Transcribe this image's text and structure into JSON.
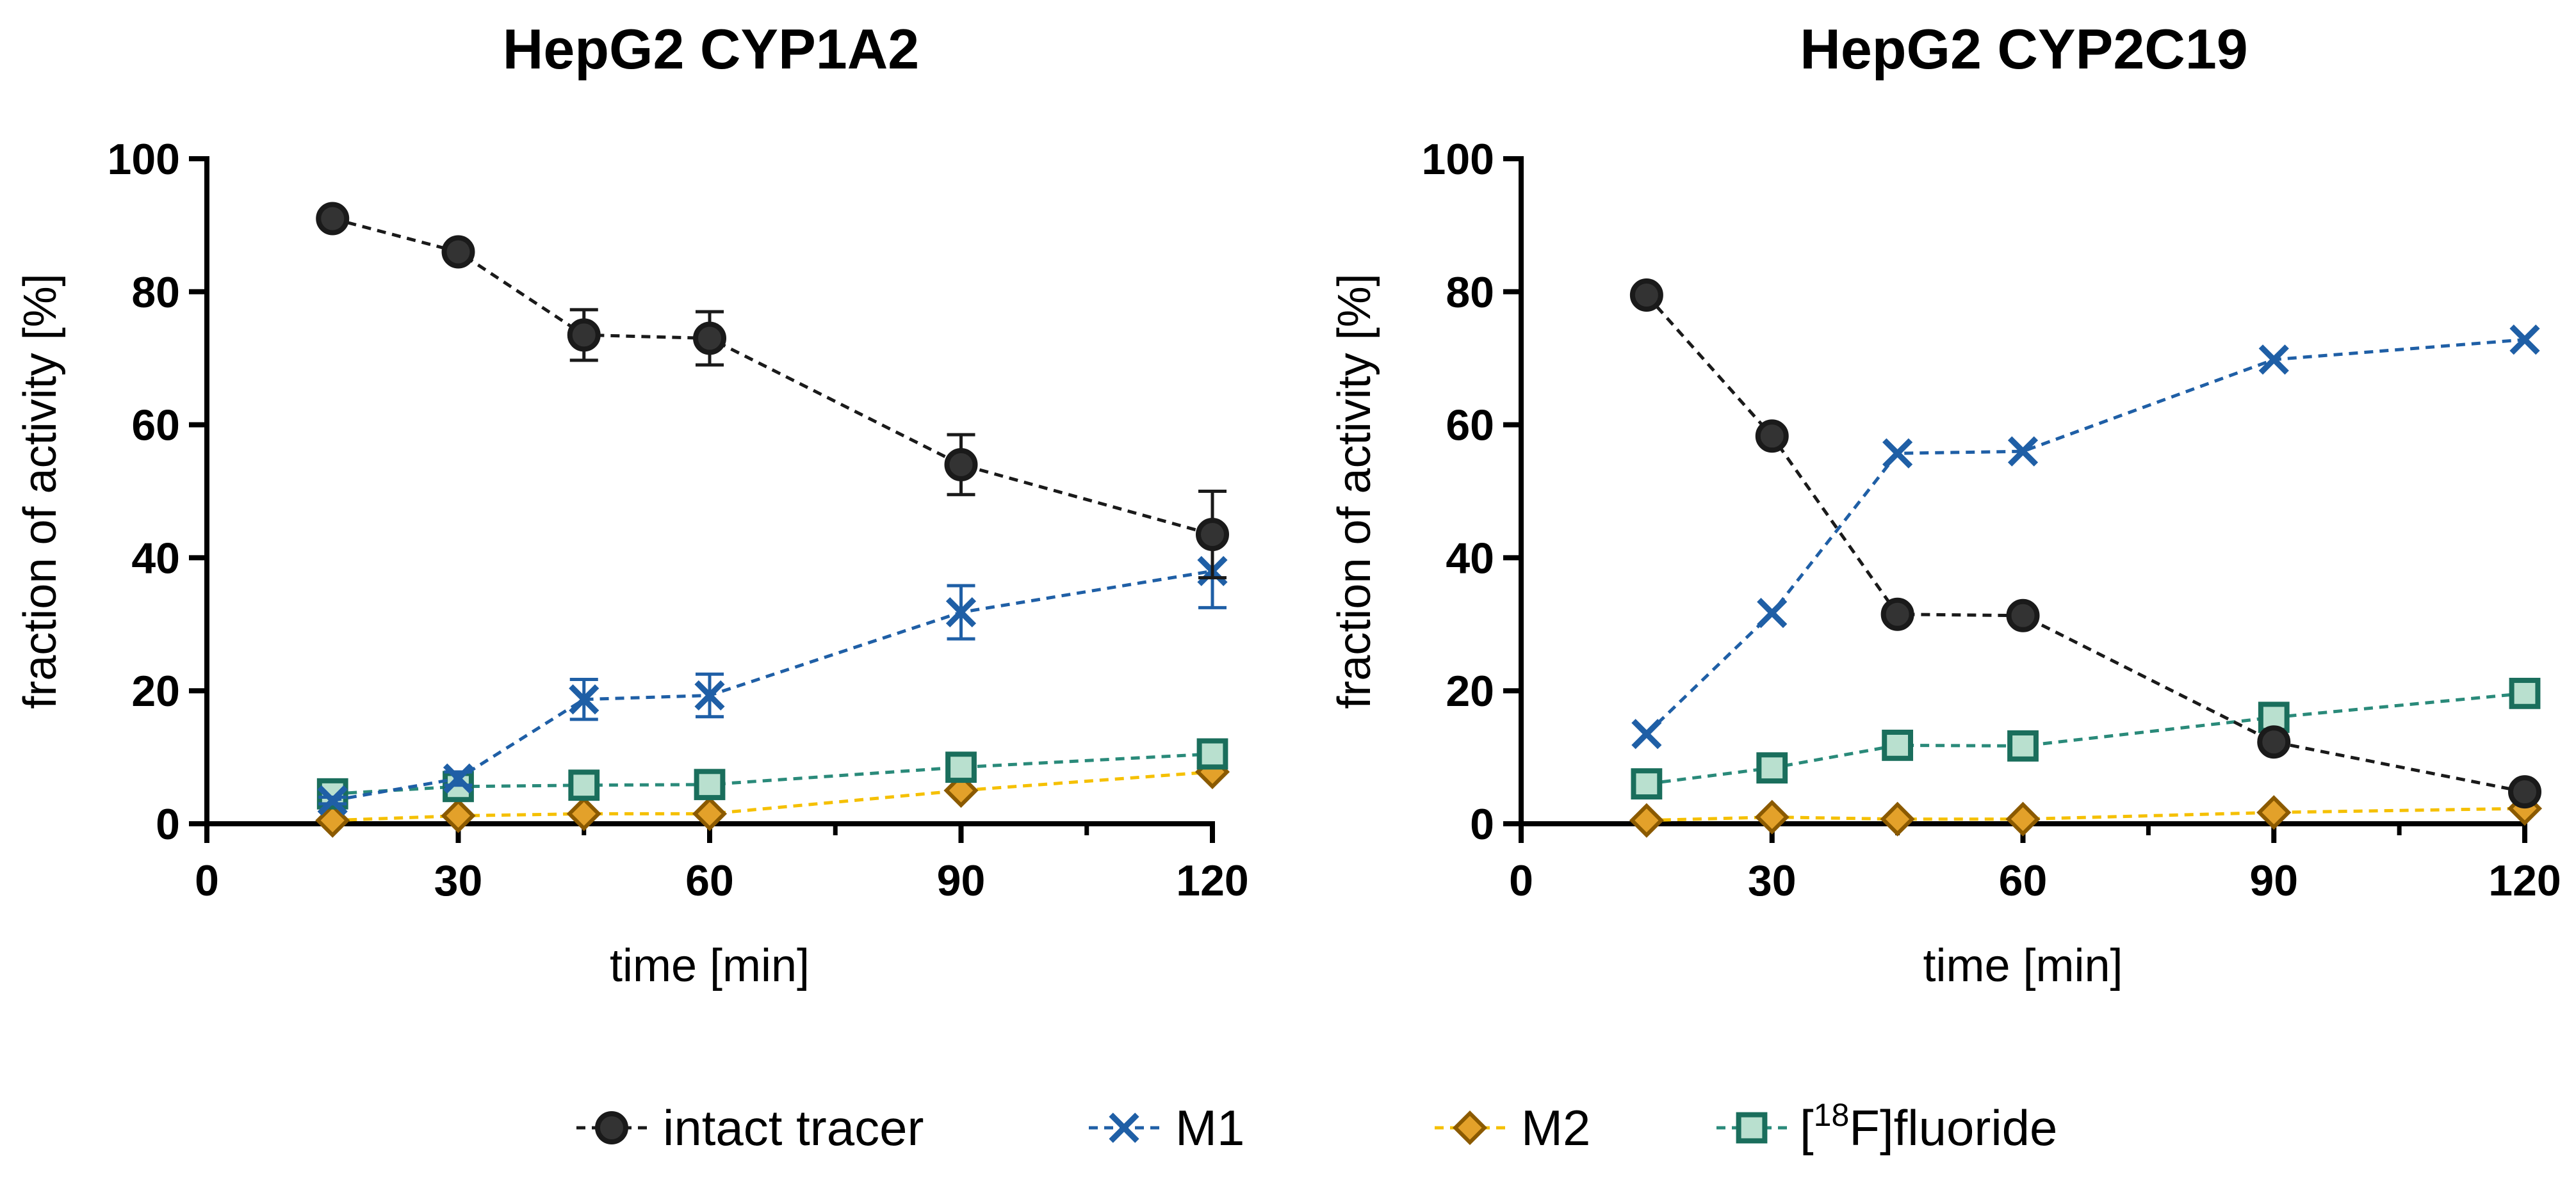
{
  "legend": {
    "placement": "bottom-center",
    "entries": [
      {
        "key": "intact",
        "label": "intact tracer",
        "color": "#1a1a1a",
        "fill": "#333333",
        "marker": "circle"
      },
      {
        "key": "m1",
        "label": "M1",
        "color": "#1f5fa6",
        "fill": "none",
        "marker": "x"
      },
      {
        "key": "m2",
        "label": "M2",
        "color": "#f5c000",
        "markerStroke": "#8b5a00",
        "fill": "#e3a12a",
        "marker": "diamond"
      },
      {
        "key": "fluoride",
        "label_pre": "[",
        "label_sup": "18",
        "label_post": "F]fluoride",
        "color": "#2a8a7a",
        "markerStroke": "#1a6e5c",
        "fill": "#b9e0cf",
        "marker": "square"
      }
    ]
  },
  "chart_data": [
    {
      "type": "line",
      "title": "HepG2 CYP1A2",
      "xlabel": "time [min]",
      "ylabel": "fraction of activity [%]",
      "xlim": [
        0,
        120
      ],
      "ylim": [
        0,
        100
      ],
      "xticks": [
        0,
        30,
        60,
        90,
        120
      ],
      "yticks": [
        0,
        20,
        40,
        60,
        80,
        100
      ],
      "x_minor_ticks": [
        15,
        45,
        75,
        105
      ],
      "grid": false,
      "x": [
        15,
        30,
        45,
        60,
        90,
        120
      ],
      "series": [
        {
          "key": "intact",
          "values": [
            91,
            86,
            73.5,
            73,
            54,
            43.5
          ],
          "errors": [
            1,
            1,
            3.8,
            4,
            4.5,
            6.5
          ]
        },
        {
          "key": "m1",
          "values": [
            3.5,
            6.8,
            18.7,
            19.3,
            31.8,
            38
          ],
          "errors": [
            0.5,
            1,
            3,
            3.2,
            4,
            5.5
          ]
        },
        {
          "key": "m2",
          "values": [
            0.5,
            1.2,
            1.5,
            1.5,
            5,
            7.8
          ],
          "errors": [
            0,
            0,
            0,
            0,
            0,
            0
          ]
        },
        {
          "key": "fluoride",
          "values": [
            4.5,
            5.6,
            5.8,
            5.9,
            8.5,
            10.5
          ],
          "errors": [
            0,
            0,
            0,
            0,
            0,
            0
          ]
        }
      ]
    },
    {
      "type": "line",
      "title": "HepG2 CYP2C19",
      "xlabel": "time [min]",
      "ylabel": "fraction of activity [%]",
      "xlim": [
        0,
        120
      ],
      "ylim": [
        0,
        100
      ],
      "xticks": [
        0,
        30,
        60,
        90,
        120
      ],
      "yticks": [
        0,
        20,
        40,
        60,
        80,
        100
      ],
      "x_minor_ticks": [
        15,
        45,
        75,
        105
      ],
      "grid": false,
      "x": [
        15,
        30,
        45,
        60,
        90,
        120
      ],
      "series": [
        {
          "key": "intact",
          "values": [
            79.5,
            58.3,
            31.5,
            31.3,
            12.3,
            4.8
          ],
          "errors": [
            0,
            0,
            0,
            0,
            0,
            0
          ]
        },
        {
          "key": "m1",
          "values": [
            13.5,
            31.7,
            55.7,
            56,
            69.8,
            72.8
          ],
          "errors": [
            0,
            0,
            0,
            0,
            0,
            0
          ]
        },
        {
          "key": "m2",
          "values": [
            0.5,
            1,
            0.7,
            0.7,
            1.7,
            2.3
          ],
          "errors": [
            0,
            0,
            0,
            0,
            0,
            0
          ]
        },
        {
          "key": "fluoride",
          "values": [
            6,
            8.4,
            11.8,
            11.7,
            16,
            19.6
          ],
          "errors": [
            0,
            0,
            0,
            0,
            0,
            0
          ]
        }
      ]
    }
  ]
}
